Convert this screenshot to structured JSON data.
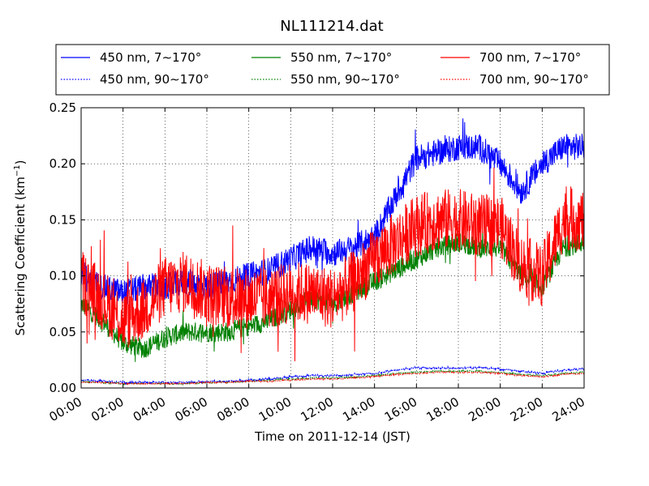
{
  "chart_data": {
    "type": "line",
    "title": "NL111214.dat",
    "xlabel": "Time on 2011-12-14 (JST)",
    "ylabel": "Scattering Coefficient (km",
    "ylabel_superscript": "−1",
    "ylabel_suffix": ")",
    "x_ticks": [
      "00:00",
      "02:00",
      "04:00",
      "06:00",
      "08:00",
      "10:00",
      "12:00",
      "14:00",
      "16:00",
      "18:00",
      "20:00",
      "22:00",
      "24:00"
    ],
    "xlim": [
      0,
      24
    ],
    "ylim": [
      0,
      0.25
    ],
    "y_ticks": [
      "0.00",
      "0.05",
      "0.10",
      "0.15",
      "0.20",
      "0.25"
    ],
    "grid": true,
    "legend_position": "top",
    "x_key_hours": [
      0,
      1,
      2,
      3,
      4,
      5,
      6,
      7,
      8,
      9,
      10,
      11,
      12,
      13,
      14,
      15,
      16,
      17,
      18,
      19,
      20,
      21,
      22,
      23,
      24
    ],
    "series": [
      {
        "name": "450 nm, 7∼170°",
        "color": "#0000ff",
        "style": "solid",
        "values": [
          0.1,
          0.09,
          0.085,
          0.09,
          0.09,
          0.095,
          0.09,
          0.095,
          0.1,
          0.105,
          0.115,
          0.125,
          0.12,
          0.125,
          0.135,
          0.17,
          0.205,
          0.21,
          0.215,
          0.215,
          0.2,
          0.175,
          0.2,
          0.215,
          0.215
        ],
        "noise": 0.012
      },
      {
        "name": "450 nm, 90∼170°",
        "color": "#0000ff",
        "style": "dotted",
        "values": [
          0.007,
          0.006,
          0.005,
          0.005,
          0.005,
          0.005,
          0.006,
          0.006,
          0.007,
          0.008,
          0.01,
          0.011,
          0.011,
          0.012,
          0.013,
          0.016,
          0.018,
          0.018,
          0.018,
          0.018,
          0.017,
          0.015,
          0.013,
          0.016,
          0.017
        ],
        "noise": 0.0008
      },
      {
        "name": "550 nm, 7∼170°",
        "color": "#008000",
        "style": "solid",
        "values": [
          0.075,
          0.06,
          0.04,
          0.035,
          0.045,
          0.05,
          0.05,
          0.05,
          0.055,
          0.06,
          0.07,
          0.08,
          0.075,
          0.085,
          0.095,
          0.105,
          0.115,
          0.125,
          0.13,
          0.125,
          0.125,
          0.1,
          0.09,
          0.125,
          0.13
        ],
        "noise": 0.009
      },
      {
        "name": "550 nm, 90∼170°",
        "color": "#008000",
        "style": "dotted",
        "values": [
          0.006,
          0.005,
          0.004,
          0.004,
          0.004,
          0.004,
          0.005,
          0.005,
          0.006,
          0.007,
          0.008,
          0.009,
          0.009,
          0.01,
          0.011,
          0.013,
          0.014,
          0.015,
          0.015,
          0.015,
          0.014,
          0.012,
          0.011,
          0.013,
          0.014
        ],
        "noise": 0.0006
      },
      {
        "name": "700 nm, 7∼170°",
        "color": "#ff0000",
        "style": "solid",
        "values": [
          0.095,
          0.08,
          0.06,
          0.07,
          0.09,
          0.095,
          0.085,
          0.08,
          0.08,
          0.08,
          0.085,
          0.085,
          0.08,
          0.095,
          0.115,
          0.13,
          0.145,
          0.15,
          0.15,
          0.145,
          0.145,
          0.11,
          0.1,
          0.15,
          0.15
        ],
        "noise": 0.028
      },
      {
        "name": "700 nm, 90∼170°",
        "color": "#ff0000",
        "style": "dotted",
        "values": [
          0.005,
          0.005,
          0.004,
          0.004,
          0.004,
          0.004,
          0.005,
          0.005,
          0.006,
          0.006,
          0.007,
          0.008,
          0.008,
          0.009,
          0.01,
          0.012,
          0.013,
          0.014,
          0.014,
          0.014,
          0.013,
          0.011,
          0.01,
          0.012,
          0.013
        ],
        "noise": 0.0005
      }
    ]
  }
}
